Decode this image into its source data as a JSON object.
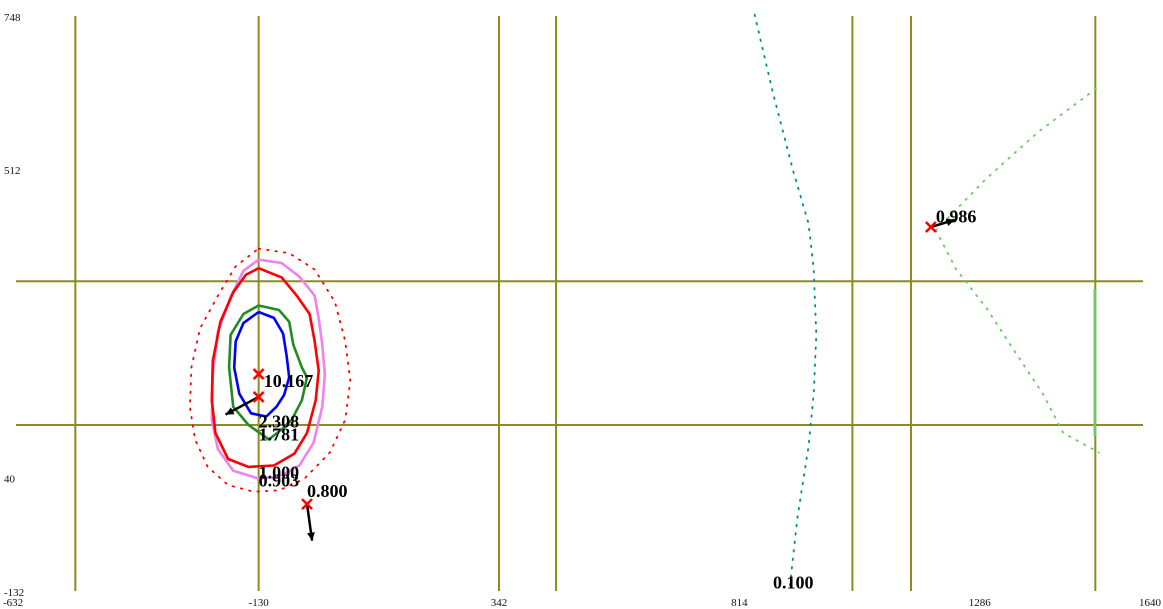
{
  "chart_data": {
    "type": "line",
    "title": "",
    "xlabel": "",
    "ylabel": "",
    "xlim": [
      -632,
      1640
    ],
    "ylim": [
      -132,
      748
    ],
    "x_ticks": [
      {
        "value": -632,
        "label": "-632"
      },
      {
        "value": -130,
        "label": "-130"
      },
      {
        "value": 342,
        "label": "342"
      },
      {
        "value": 814,
        "label": "814"
      },
      {
        "value": 1286,
        "label": "1286"
      },
      {
        "value": 1640,
        "label": "1640"
      }
    ],
    "y_ticks": [
      {
        "value": -132,
        "label": "-132"
      },
      {
        "value": 40,
        "label": "40"
      },
      {
        "value": 512,
        "label": "512"
      },
      {
        "value": 748,
        "label": "748"
      }
    ],
    "grid": {
      "vertical": [
        -490,
        -130,
        342,
        454,
        1036,
        1151,
        1513
      ],
      "horizontal": [
        342,
        122
      ],
      "color": "#8b8b1f"
    },
    "series": [
      {
        "color": "#ee82ee",
        "style": "solid",
        "points": [
          [
            -130,
            375
          ],
          [
            -85,
            370
          ],
          [
            -50,
            349
          ],
          [
            -20,
            320
          ],
          [
            -12,
            285
          ],
          [
            -5,
            245
          ],
          [
            0,
            200
          ],
          [
            -5,
            150
          ],
          [
            -22,
            95
          ],
          [
            -50,
            60
          ],
          [
            -90,
            43
          ],
          [
            -130,
            40
          ],
          [
            -180,
            52
          ],
          [
            -210,
            85
          ],
          [
            -222,
            130
          ],
          [
            -220,
            200
          ],
          [
            -210,
            265
          ],
          [
            -185,
            318
          ],
          [
            -160,
            358
          ],
          [
            -130,
            375
          ]
        ]
      },
      {
        "color": "#ff0000",
        "style": "solid",
        "points": [
          [
            -130,
            362
          ],
          [
            -85,
            348
          ],
          [
            -55,
            320
          ],
          [
            -30,
            292
          ],
          [
            -20,
            250
          ],
          [
            -12,
            205
          ],
          [
            -18,
            160
          ],
          [
            -35,
            110
          ],
          [
            -60,
            78
          ],
          [
            -100,
            60
          ],
          [
            -150,
            58
          ],
          [
            -190,
            70
          ],
          [
            -215,
            110
          ],
          [
            -222,
            160
          ],
          [
            -220,
            220
          ],
          [
            -205,
            280
          ],
          [
            -180,
            325
          ],
          [
            -155,
            352
          ],
          [
            -130,
            362
          ]
        ]
      },
      {
        "color": "#228b22",
        "style": "solid",
        "points": [
          [
            -130,
            305
          ],
          [
            -90,
            298
          ],
          [
            -70,
            280
          ],
          [
            -62,
            245
          ],
          [
            -45,
            210
          ],
          [
            -35,
            195
          ],
          [
            -45,
            160
          ],
          [
            -65,
            130
          ],
          [
            -85,
            115
          ],
          [
            -110,
            100
          ],
          [
            -150,
            122
          ],
          [
            -180,
            150
          ],
          [
            -188,
            210
          ],
          [
            -185,
            260
          ],
          [
            -160,
            292
          ],
          [
            -130,
            305
          ]
        ]
      },
      {
        "color": "#0000ff",
        "style": "solid",
        "points": [
          [
            -130,
            295
          ],
          [
            -100,
            286
          ],
          [
            -82,
            262
          ],
          [
            -75,
            228
          ],
          [
            -70,
            195
          ],
          [
            -80,
            168
          ],
          [
            -95,
            150
          ],
          [
            -115,
            135
          ],
          [
            -145,
            140
          ],
          [
            -168,
            170
          ],
          [
            -178,
            210
          ],
          [
            -175,
            250
          ],
          [
            -160,
            278
          ],
          [
            -130,
            295
          ]
        ]
      },
      {
        "color": "#ff0000",
        "style": "dotted",
        "points": [
          [
            -130,
            392
          ],
          [
            -70,
            385
          ],
          [
            -20,
            360
          ],
          [
            20,
            310
          ],
          [
            40,
            250
          ],
          [
            50,
            190
          ],
          [
            40,
            130
          ],
          [
            10,
            80
          ],
          [
            -40,
            40
          ],
          [
            -90,
            22
          ],
          [
            -140,
            20
          ],
          [
            -190,
            30
          ],
          [
            -230,
            58
          ],
          [
            -255,
            100
          ],
          [
            -265,
            150
          ],
          [
            -262,
            210
          ],
          [
            -245,
            270
          ],
          [
            -210,
            320
          ],
          [
            -175,
            365
          ],
          [
            -130,
            392
          ]
        ]
      },
      {
        "color": "#008b8b",
        "style": "dotted",
        "points": [
          [
            844,
            750
          ],
          [
            880,
            630
          ],
          [
            920,
            510
          ],
          [
            950,
            430
          ],
          [
            960,
            360
          ],
          [
            965,
            260
          ],
          [
            960,
            170
          ],
          [
            950,
            90
          ],
          [
            928,
            -20
          ],
          [
            912,
            -132
          ]
        ]
      },
      {
        "color": "#66cc66",
        "style": "dotted",
        "points": [
          [
            1200,
            420
          ],
          [
            1240,
            360
          ],
          [
            1300,
            300
          ],
          [
            1350,
            240
          ],
          [
            1410,
            170
          ],
          [
            1450,
            110
          ],
          [
            1520,
            80
          ]
        ]
      },
      {
        "color": "#66cc66",
        "style": "dotted",
        "points": [
          [
            1200,
            420
          ],
          [
            1300,
            500
          ],
          [
            1400,
            570
          ],
          [
            1520,
            640
          ]
        ]
      },
      {
        "color": "#66cc66",
        "style": "solid",
        "points": [
          [
            1512,
            330
          ],
          [
            1512,
            105
          ]
        ]
      }
    ],
    "markers": [
      {
        "x": -130,
        "y": 200
      },
      {
        "x": -130,
        "y": 165
      },
      {
        "x": -35,
        "y": 1
      },
      {
        "x": 1190,
        "y": 425
      }
    ],
    "arrows": [
      {
        "from": [
          -130,
          165
        ],
        "to": [
          -195,
          138
        ]
      },
      {
        "from": [
          -35,
          1
        ],
        "to": [
          -25,
          -55
        ]
      },
      {
        "from": [
          1190,
          425
        ],
        "to": [
          1237,
          436
        ]
      }
    ],
    "annotations": [
      {
        "text": "10.167",
        "x": -120,
        "y": 180
      },
      {
        "text": "2.308",
        "x": -130,
        "y": 118
      },
      {
        "text": "1.781",
        "x": -130,
        "y": 98
      },
      {
        "text": "1.000",
        "x": -130,
        "y": 40
      },
      {
        "text": "0.903",
        "x": -130,
        "y": 28
      },
      {
        "text": "0.800",
        "x": -35,
        "y": 12
      },
      {
        "text": "0.986",
        "x": 1200,
        "y": 432
      },
      {
        "text": "0.100",
        "x": 880,
        "y": -128
      }
    ]
  }
}
